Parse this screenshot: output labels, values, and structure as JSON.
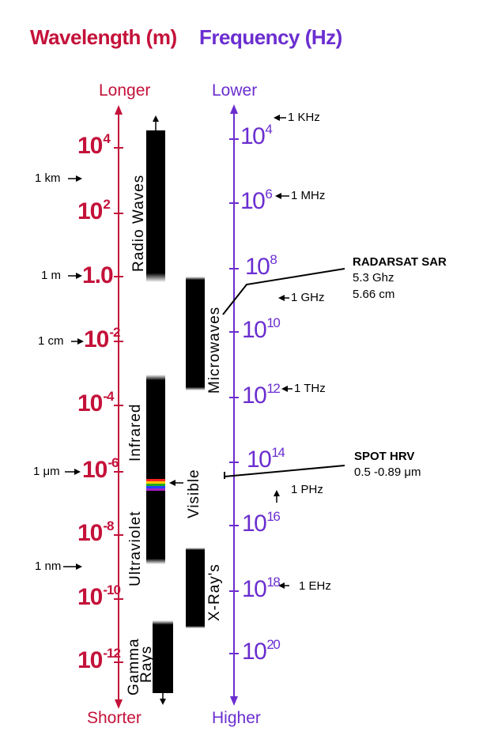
{
  "headers": {
    "wavelength": "Wavelength (m)",
    "frequency": "Frequency (Hz)"
  },
  "wavelength_axis": {
    "top": "Longer",
    "bottom": "Shorter",
    "ticks": [
      {
        "base": "10",
        "exp": "4"
      },
      {
        "base": "10",
        "exp": "2"
      },
      {
        "base": "1.0",
        "exp": ""
      },
      {
        "base": "10",
        "exp": "-2"
      },
      {
        "base": "10",
        "exp": "-4"
      },
      {
        "base": "10",
        "exp": "-6"
      },
      {
        "base": "10",
        "exp": "-8"
      },
      {
        "base": "10",
        "exp": "-10"
      },
      {
        "base": "10",
        "exp": "-12"
      }
    ],
    "side_labels": [
      "1 km",
      "1 m",
      "1 cm",
      "1 μm",
      "1 nm"
    ]
  },
  "frequency_axis": {
    "top": "Lower",
    "bottom": "Higher",
    "ticks": [
      {
        "base": "10",
        "exp": "4"
      },
      {
        "base": "10",
        "exp": "6"
      },
      {
        "base": "10",
        "exp": "8"
      },
      {
        "base": "10",
        "exp": "10"
      },
      {
        "base": "10",
        "exp": "12"
      },
      {
        "base": "10",
        "exp": "14"
      },
      {
        "base": "10",
        "exp": "16"
      },
      {
        "base": "10",
        "exp": "18"
      },
      {
        "base": "10",
        "exp": "20"
      }
    ],
    "unit_labels": [
      "1 KHz",
      "1 MHz",
      "1 GHz",
      "1 THz",
      "1 PHz",
      "1 EHz"
    ]
  },
  "bands": {
    "radio": "Radio Waves",
    "microwaves": "Microwaves",
    "infrared": "Infrared",
    "visible": "Visible",
    "ultraviolet": "Ultraviolet",
    "xrays": "X-Ray's",
    "gamma_line1": "Gamma",
    "gamma_line2": "Rays"
  },
  "sensors": {
    "radarsat": {
      "name": "RADARSAT SAR",
      "line1": "5.3 Ghz",
      "line2": "5.66 cm"
    },
    "spot": {
      "name": "SPOT HRV",
      "line1": "0.5 -0.89 μm"
    }
  },
  "colors": {
    "wavelength": "#c4123a",
    "frequency": "#6b2ed0",
    "bar": "#000000"
  }
}
